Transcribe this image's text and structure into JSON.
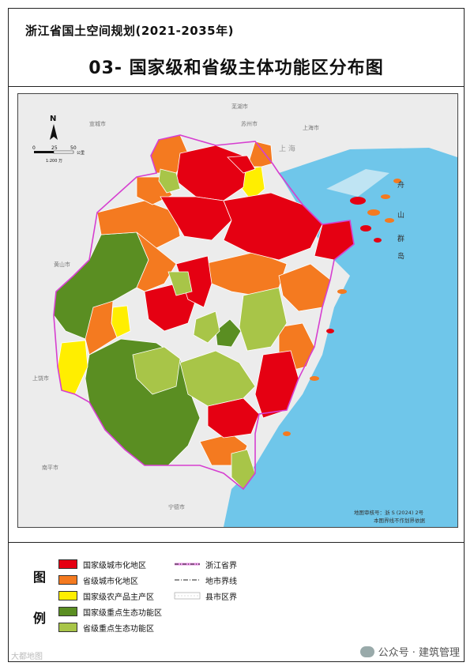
{
  "header": {
    "plan_title": "浙江省国土空间规划(2021-2035年)",
    "map_title": "03- 国家级和省级主体功能区分布图"
  },
  "map": {
    "north_label": "N",
    "scale": {
      "ticks": [
        "0",
        "25",
        "50"
      ],
      "unit": "公里",
      "ratio": "1:200 万"
    },
    "outside_labels": {
      "wuhu": "芜湖市",
      "suzhou": "苏州市",
      "shanghai_city": "上海市",
      "shanghai_big": "上 海",
      "xuancheng": "宣城市",
      "huangshan": "黄山市",
      "shangrao": "上饶市",
      "nanping": "南平市",
      "ningde": "宁德市"
    },
    "zhoushan_label": [
      "舟",
      "山",
      "群",
      "岛"
    ],
    "review_number": "地图审核号：浙 S (2024) 2号",
    "boundary_note": "本图界线不作划界依据",
    "region_colors": {
      "national_urban": "#e50012",
      "provincial_urban": "#f47a20",
      "national_agri": "#ffee00",
      "national_eco": "#5a8e22",
      "provincial_eco": "#a8c548",
      "sea": "#6fc6ea",
      "outside": "#ececec"
    }
  },
  "legend": {
    "heading_top": "图",
    "heading_bottom": "例",
    "zones": [
      {
        "label": "国家级城市化地区",
        "color": "#e50012"
      },
      {
        "label": "省级城市化地区",
        "color": "#f47a20"
      },
      {
        "label": "国家级农产品主产区",
        "color": "#ffee00"
      },
      {
        "label": "国家级重点生态功能区",
        "color": "#5a8e22"
      },
      {
        "label": "省级重点生态功能区",
        "color": "#a8c548"
      }
    ],
    "lines": [
      {
        "label": "浙江省界"
      },
      {
        "label": "地市界线"
      },
      {
        "label": "县市区界"
      }
    ]
  },
  "watermark": {
    "text": "公众号 · 建筑管理",
    "left_text": "大都地图"
  }
}
